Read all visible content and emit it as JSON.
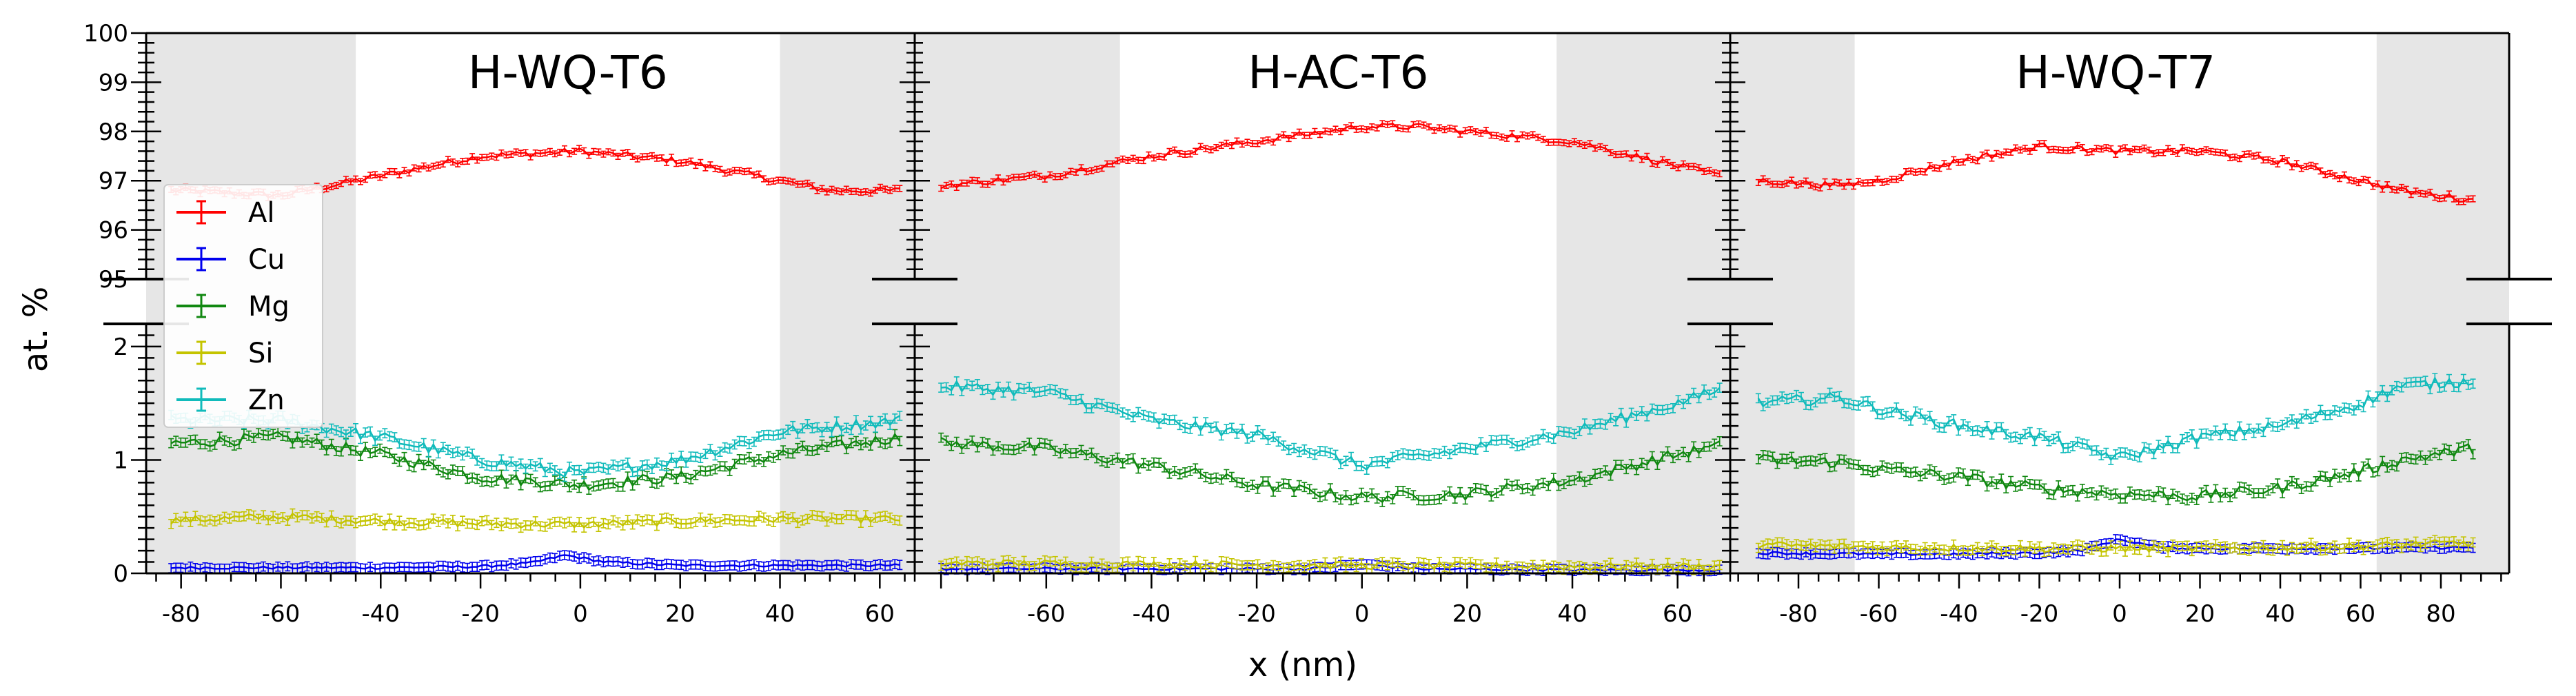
{
  "chart_data": {
    "type": "line",
    "xlabel": "x (nm)",
    "ylabel": "at. %",
    "y_axis_break": {
      "lower_range": [
        0,
        2.2
      ],
      "upper_range": [
        95,
        100
      ],
      "lower_tick_labels": [
        "0",
        "1",
        "2"
      ],
      "upper_tick_labels": [
        "95",
        "96",
        "97",
        "98",
        "99",
        "100"
      ]
    },
    "legend": {
      "placement": "left, overlapping first panel",
      "entries": [
        "Al",
        "Cu",
        "Mg",
        "Si",
        "Zn"
      ]
    },
    "colors": {
      "Al": "#ff0000",
      "Cu": "#0000ee",
      "Mg": "#118811",
      "Si": "#c4c400",
      "Zn": "#11bbbb",
      "shade": "#e6e6e6"
    },
    "panels": [
      {
        "title": "H-WQ-T6",
        "xlim": [
          -87,
          67
        ],
        "x_tick_labels": [
          "-80",
          "-60",
          "-40",
          "-20",
          "0",
          "20",
          "40",
          "60"
        ],
        "shaded_regions": [
          [
            -87,
            -45
          ],
          [
            40,
            67
          ]
        ],
        "x_start": -82,
        "x_end": 64,
        "series": [
          {
            "name": "Al",
            "x": [
              -80,
              -60,
              -40,
              -20,
              0,
              20,
              40,
              50,
              64
            ],
            "values": [
              96.8,
              96.7,
              97.1,
              97.5,
              97.6,
              97.4,
              97.0,
              96.8,
              96.8
            ]
          },
          {
            "name": "Cu",
            "x": [
              -80,
              -60,
              -40,
              -20,
              -10,
              -3,
              5,
              20,
              40,
              64
            ],
            "values": [
              0.05,
              0.05,
              0.05,
              0.06,
              0.09,
              0.16,
              0.1,
              0.07,
              0.07,
              0.07
            ]
          },
          {
            "name": "Mg",
            "x": [
              -80,
              -60,
              -40,
              -20,
              0,
              20,
              40,
              64
            ],
            "values": [
              1.15,
              1.2,
              1.05,
              0.85,
              0.78,
              0.85,
              1.05,
              1.2
            ]
          },
          {
            "name": "Si",
            "x": [
              -80,
              -60,
              -40,
              -20,
              0,
              20,
              40,
              64
            ],
            "values": [
              0.47,
              0.5,
              0.46,
              0.44,
              0.43,
              0.46,
              0.48,
              0.48
            ]
          },
          {
            "name": "Zn",
            "x": [
              -80,
              -60,
              -40,
              -20,
              0,
              20,
              40,
              64
            ],
            "values": [
              1.35,
              1.35,
              1.2,
              1.0,
              0.88,
              1.0,
              1.25,
              1.35
            ]
          }
        ]
      },
      {
        "title": "H-AC-T6",
        "xlim": [
          -85,
          70
        ],
        "x_tick_labels": [
          "-60",
          "-40",
          "-20",
          "0",
          "20",
          "40",
          "60"
        ],
        "shaded_regions": [
          [
            -85,
            -46
          ],
          [
            37,
            70
          ]
        ],
        "x_start": -80,
        "x_end": 68,
        "series": [
          {
            "name": "Al",
            "x": [
              -80,
              -60,
              -40,
              -20,
              0,
              10,
              20,
              40,
              60,
              68
            ],
            "values": [
              96.9,
              97.1,
              97.5,
              97.8,
              98.1,
              98.1,
              98.0,
              97.8,
              97.3,
              97.1
            ]
          },
          {
            "name": "Cu",
            "x": [
              -80,
              -40,
              -10,
              0,
              10,
              40,
              68
            ],
            "values": [
              0.04,
              0.04,
              0.04,
              0.08,
              0.04,
              0.03,
              0.03
            ]
          },
          {
            "name": "Mg",
            "x": [
              -80,
              -60,
              -40,
              -20,
              0,
              20,
              40,
              60,
              68
            ],
            "values": [
              1.15,
              1.1,
              0.95,
              0.78,
              0.67,
              0.7,
              0.82,
              1.05,
              1.12
            ]
          },
          {
            "name": "Si",
            "x": [
              -80,
              -40,
              0,
              40,
              68
            ],
            "values": [
              0.09,
              0.08,
              0.07,
              0.06,
              0.06
            ]
          },
          {
            "name": "Zn",
            "x": [
              -80,
              -60,
              -40,
              -20,
              0,
              20,
              40,
              60,
              68
            ],
            "values": [
              1.65,
              1.6,
              1.35,
              1.22,
              0.95,
              1.1,
              1.25,
              1.5,
              1.62
            ]
          }
        ]
      },
      {
        "title": "H-WQ-T7",
        "xlim": [
          -97,
          97
        ],
        "x_tick_labels": [
          "-80",
          "-60",
          "-40",
          "-20",
          "0",
          "20",
          "40",
          "60",
          "80"
        ],
        "shaded_regions": [
          [
            -97,
            -66
          ],
          [
            64,
            97
          ]
        ],
        "x_start": -90,
        "x_end": 88,
        "series": [
          {
            "name": "Al",
            "x": [
              -90,
              -70,
              -60,
              -40,
              -20,
              0,
              20,
              40,
              60,
              70,
              88
            ],
            "values": [
              97.0,
              96.9,
              97.0,
              97.4,
              97.7,
              97.6,
              97.6,
              97.4,
              97.0,
              96.8,
              96.6
            ]
          },
          {
            "name": "Cu",
            "x": [
              -90,
              -60,
              -40,
              -20,
              -10,
              0,
              10,
              20,
              40,
              60,
              88
            ],
            "values": [
              0.18,
              0.17,
              0.17,
              0.18,
              0.2,
              0.3,
              0.23,
              0.22,
              0.22,
              0.22,
              0.23
            ]
          },
          {
            "name": "Mg",
            "x": [
              -90,
              -70,
              -60,
              -40,
              -20,
              0,
              20,
              40,
              60,
              70,
              88
            ],
            "values": [
              1.0,
              0.98,
              0.92,
              0.85,
              0.75,
              0.7,
              0.68,
              0.75,
              0.9,
              1.0,
              1.1
            ]
          },
          {
            "name": "Si",
            "x": [
              -90,
              -60,
              -20,
              0,
              20,
              60,
              88
            ],
            "values": [
              0.25,
              0.23,
              0.22,
              0.22,
              0.22,
              0.24,
              0.27
            ]
          },
          {
            "name": "Zn",
            "x": [
              -90,
              -70,
              -60,
              -40,
              -20,
              0,
              20,
              40,
              60,
              70,
              88
            ],
            "values": [
              1.5,
              1.55,
              1.45,
              1.3,
              1.2,
              1.02,
              1.2,
              1.3,
              1.5,
              1.65,
              1.7
            ]
          }
        ]
      }
    ]
  }
}
